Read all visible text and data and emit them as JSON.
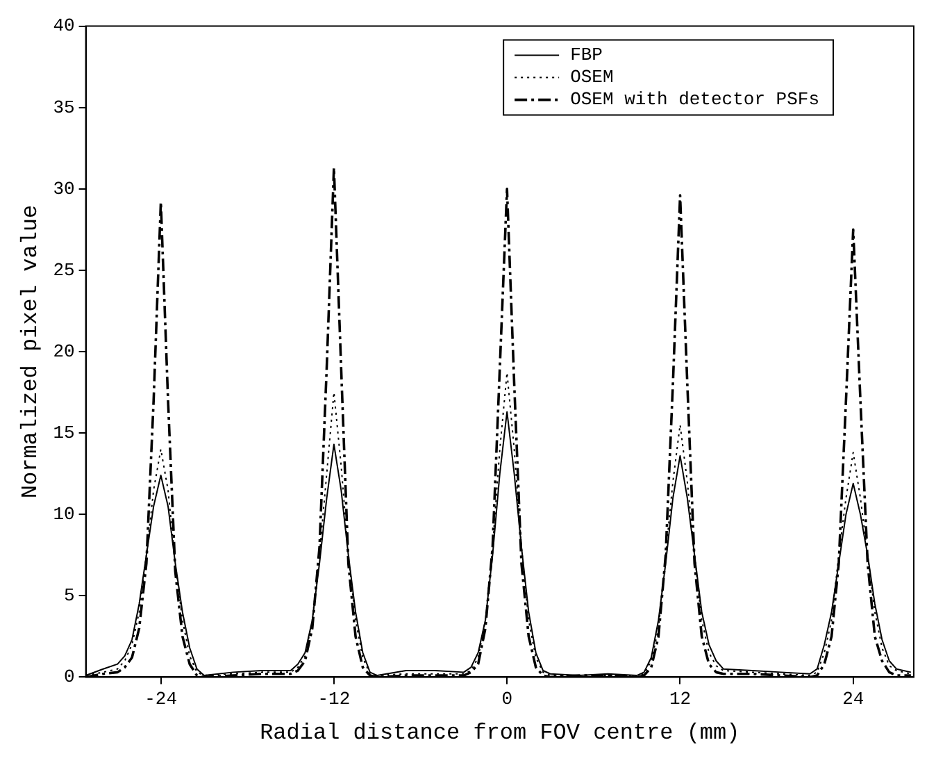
{
  "chart_data": {
    "type": "line",
    "xlabel": "Radial distance from FOV centre (mm)",
    "ylabel": "Normalized pixel value",
    "x": [
      -29.2,
      -28,
      -27,
      -26.5,
      -26,
      -25.5,
      -25,
      -24.5,
      -24,
      -23.5,
      -23,
      -22.5,
      -22,
      -21.5,
      -21,
      -19,
      -17,
      -15,
      -14.5,
      -14,
      -13.5,
      -13,
      -12.5,
      -12,
      -11.5,
      -11,
      -10.5,
      -10,
      -9.5,
      -9,
      -7,
      -5,
      -3,
      -2.5,
      -2,
      -1.5,
      -1,
      -0.5,
      0,
      0.5,
      1,
      1.5,
      2,
      2.5,
      3,
      5,
      7,
      9,
      9.5,
      10,
      10.5,
      11,
      11.5,
      12,
      12.5,
      13,
      13.5,
      14,
      14.5,
      15,
      17,
      19,
      21,
      21.5,
      22,
      22.5,
      23,
      23.5,
      24,
      24.5,
      25,
      25.5,
      26,
      26.5,
      27,
      28
    ],
    "series": [
      {
        "name": "FBP",
        "color": "#000000",
        "line_style": "solid",
        "values": [
          0.1,
          0.5,
          0.8,
          1.3,
          2.3,
          4.5,
          7.5,
          10.5,
          12.4,
          10.5,
          7,
          4,
          1.8,
          0.5,
          0.1,
          0.3,
          0.4,
          0.4,
          0.8,
          1.5,
          3.5,
          7,
          11,
          14.3,
          11.5,
          7.5,
          4,
          1.5,
          0.3,
          0.1,
          0.4,
          0.4,
          0.3,
          0.6,
          1.5,
          3.5,
          7.5,
          12.5,
          16.3,
          12.5,
          8,
          4,
          1.5,
          0.4,
          0.2,
          0.1,
          0.2,
          0.1,
          0.3,
          1.2,
          3.5,
          7,
          11,
          13.6,
          11,
          7.5,
          4,
          2,
          1,
          0.5,
          0.4,
          0.3,
          0.2,
          0.5,
          2,
          4,
          7,
          10,
          11.9,
          10,
          7.5,
          4.5,
          2.3,
          1,
          0.5,
          0.3
        ]
      },
      {
        "name": "OSEM",
        "color": "#000000",
        "line_style": "dotted",
        "values": [
          0.1,
          0.3,
          0.5,
          1,
          2,
          4,
          7.5,
          11.5,
          14,
          11.5,
          7,
          3.5,
          1.3,
          0.3,
          0.1,
          0.2,
          0.3,
          0.3,
          0.6,
          1.3,
          3.5,
          7.5,
          12.5,
          17.5,
          13,
          7.5,
          3.5,
          1.2,
          0.2,
          0.1,
          0.2,
          0.2,
          0.2,
          0.4,
          1.2,
          3.5,
          8,
          14,
          18.7,
          14,
          8,
          3.5,
          1.2,
          0.3,
          0.1,
          0.1,
          0.1,
          0.1,
          0.2,
          1,
          3,
          7.5,
          12,
          15.5,
          12,
          7.5,
          3.5,
          1.5,
          0.7,
          0.4,
          0.3,
          0.2,
          0.1,
          0.3,
          1.5,
          3.5,
          7.5,
          11,
          13.8,
          11,
          7.5,
          4,
          1.8,
          0.7,
          0.4,
          0.2
        ]
      },
      {
        "name": "OSEM with detector PSFs",
        "color": "#000000",
        "line_style": "dashed",
        "values": [
          0,
          0.2,
          0.3,
          0.6,
          1.2,
          3,
          7,
          17,
          29.2,
          17,
          6.5,
          2.5,
          0.8,
          0.1,
          0,
          0.1,
          0.2,
          0.2,
          0.4,
          1,
          3,
          8,
          19,
          31.3,
          19,
          7,
          2.5,
          0.6,
          0.1,
          0,
          0.1,
          0.1,
          0.1,
          0.3,
          0.8,
          3,
          8,
          19,
          30,
          18,
          7,
          2.5,
          0.6,
          0.1,
          0,
          0.1,
          0.1,
          0,
          0.1,
          0.6,
          2.5,
          7.5,
          18,
          29.6,
          18,
          7,
          2.5,
          0.8,
          0.3,
          0.2,
          0.2,
          0.1,
          0,
          0.1,
          0.8,
          2.5,
          7,
          17,
          27.5,
          17,
          7,
          2.5,
          1,
          0.3,
          0.1,
          0.1
        ]
      }
    ],
    "xlim": [
      -29.2,
      28.2
    ],
    "xticks": [
      -24,
      -12,
      0,
      12,
      24
    ],
    "ylim": [
      0,
      40
    ],
    "yticks": [
      0,
      5,
      10,
      15,
      20,
      25,
      30,
      35,
      40
    ],
    "grid": false,
    "legend": "top right"
  }
}
